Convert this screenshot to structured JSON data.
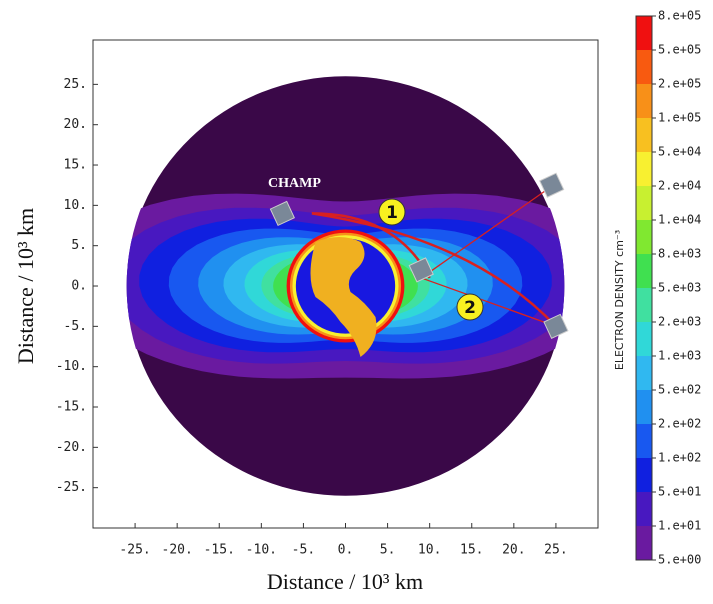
{
  "chart_data": {
    "type": "contour",
    "x_label": "Distance / 10³ km",
    "y_label": "Distance / 10³ km",
    "xlim": [
      -30,
      30
    ],
    "ylim": [
      -30,
      30.5
    ],
    "xticks": [
      {
        "value": -25,
        "label": "-25."
      },
      {
        "value": -20,
        "label": "-20."
      },
      {
        "value": -15,
        "label": "-15."
      },
      {
        "value": -10,
        "label": "-10."
      },
      {
        "value": -5,
        "label": "-5."
      },
      {
        "value": 0,
        "label": "0."
      },
      {
        "value": 5,
        "label": "5."
      },
      {
        "value": 10,
        "label": "10."
      },
      {
        "value": 15,
        "label": "15."
      },
      {
        "value": 20,
        "label": "20."
      },
      {
        "value": 25,
        "label": "25."
      }
    ],
    "yticks": [
      {
        "value": 25,
        "label": "25."
      },
      {
        "value": 20,
        "label": "20."
      },
      {
        "value": 15,
        "label": "15."
      },
      {
        "value": 10,
        "label": "10."
      },
      {
        "value": 5,
        "label": "5."
      },
      {
        "value": 0,
        "label": "0."
      },
      {
        "value": -5,
        "label": "-5."
      },
      {
        "value": -10,
        "label": "-10."
      },
      {
        "value": -15,
        "label": "-15."
      },
      {
        "value": -20,
        "label": "-20."
      },
      {
        "value": -25,
        "label": "-25."
      }
    ],
    "colorbar": {
      "title": "ELECTRON DENSITY  cm⁻³",
      "ticks": [
        {
          "value": 800000,
          "label": "8.e+05"
        },
        {
          "value": 500000,
          "label": "5.e+05"
        },
        {
          "value": 200000,
          "label": "2.e+05"
        },
        {
          "value": 100000,
          "label": "1.e+05"
        },
        {
          "value": 50000,
          "label": "5.e+04"
        },
        {
          "value": 20000,
          "label": "2.e+04"
        },
        {
          "value": 10000,
          "label": "1.e+04"
        },
        {
          "value": 8000,
          "label": "8.e+03"
        },
        {
          "value": 5000,
          "label": "5.e+03"
        },
        {
          "value": 2000,
          "label": "2.e+03"
        },
        {
          "value": 1000,
          "label": "1.e+03"
        },
        {
          "value": 500,
          "label": "5.e+02"
        },
        {
          "value": 200,
          "label": "2.e+02"
        },
        {
          "value": 100,
          "label": "1.e+02"
        },
        {
          "value": 50,
          "label": "5.e+01"
        },
        {
          "value": 10,
          "label": "1.e+01"
        },
        {
          "value": 5,
          "label": "5.e+00"
        }
      ],
      "colors": [
        "#f01010",
        "#f85a10",
        "#f89018",
        "#f8c020",
        "#f8f030",
        "#c8f030",
        "#80e830",
        "#40e050",
        "#40e0a0",
        "#30d8d8",
        "#30b8f0",
        "#2090f0",
        "#1858f0",
        "#1020e0",
        "#4818c0",
        "#6a1aa0"
      ]
    },
    "annotations": [
      "CHAMP",
      "1",
      "2"
    ]
  }
}
